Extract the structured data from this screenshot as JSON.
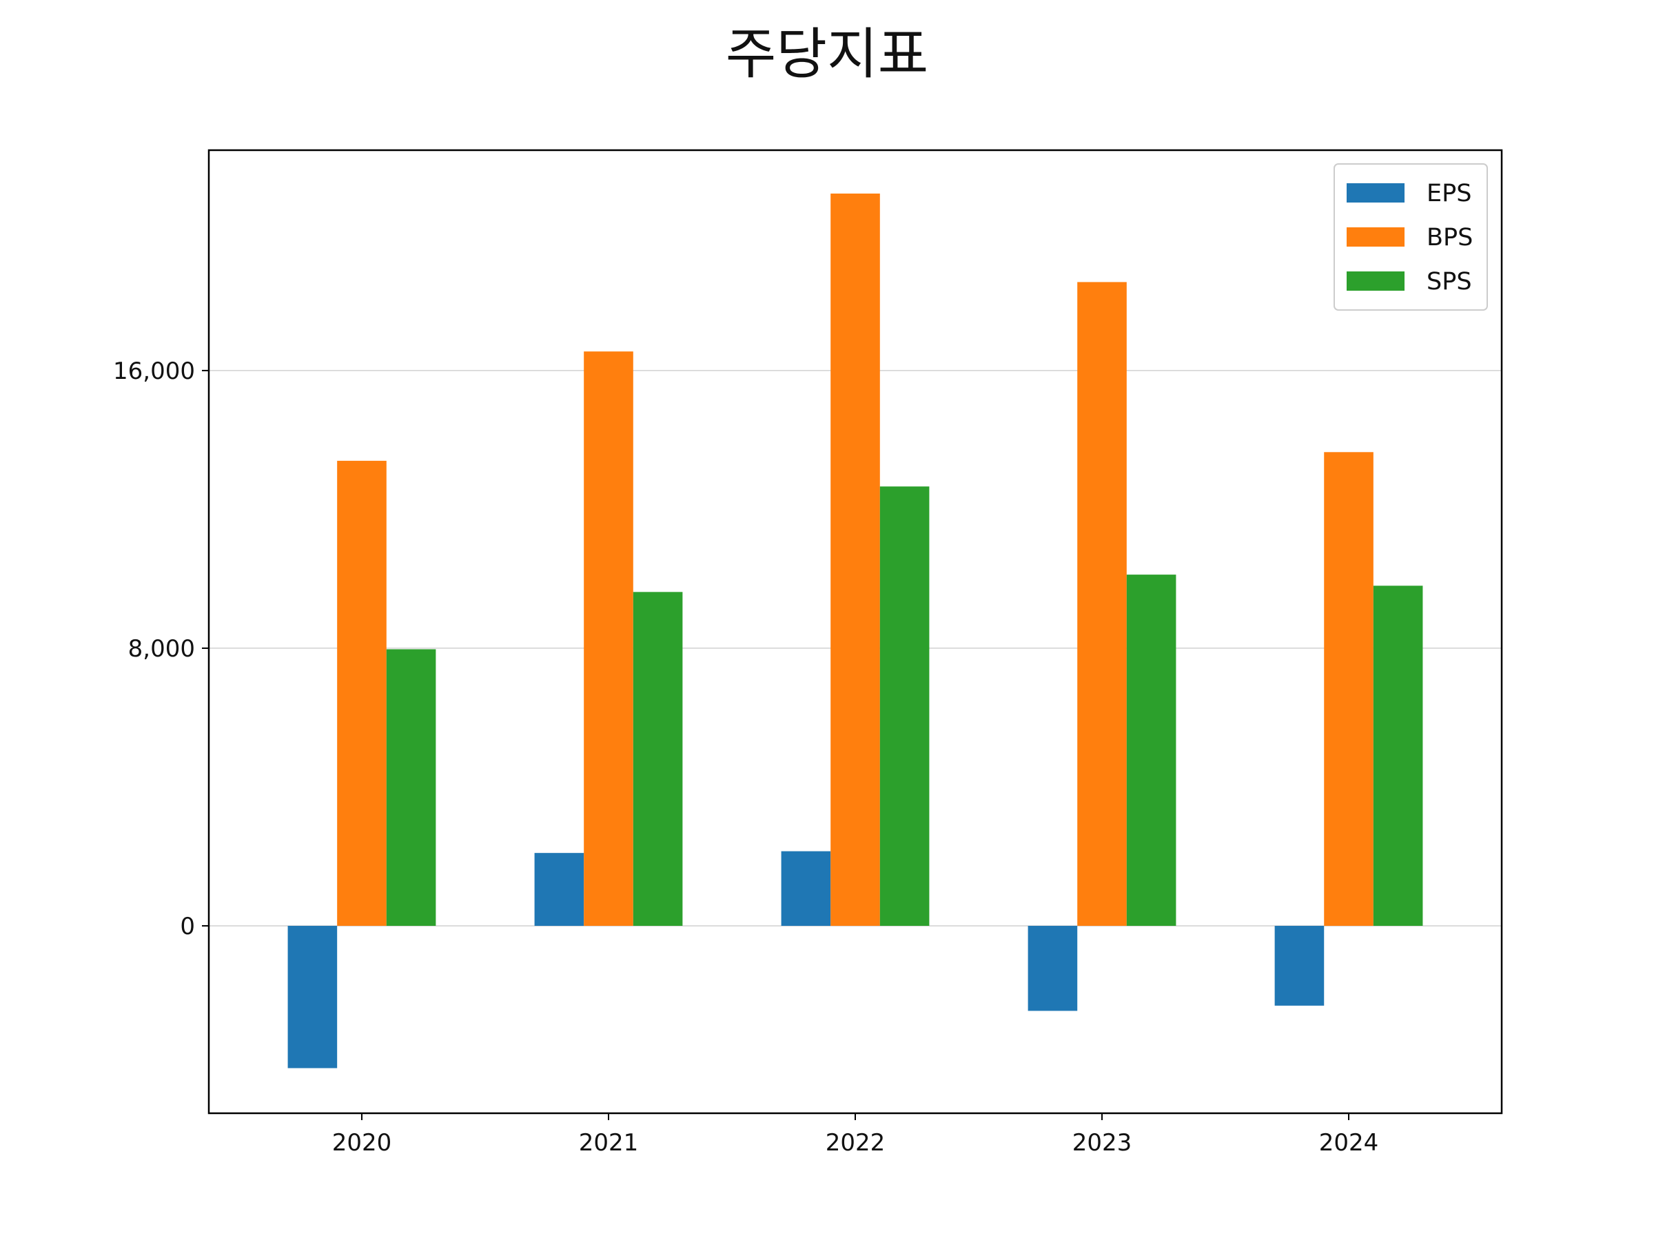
{
  "chart_data": {
    "type": "bar",
    "title": "주당지표",
    "xlabel": "",
    "ylabel": "",
    "categories": [
      "2020",
      "2021",
      "2022",
      "2023",
      "2024"
    ],
    "series": [
      {
        "name": "EPS",
        "color": "#1f77b4",
        "values": [
          -4100,
          2100,
          2150,
          -2450,
          -2300
        ]
      },
      {
        "name": "BPS",
        "color": "#ff7f0e",
        "values": [
          13400,
          16550,
          21100,
          18550,
          13650
        ]
      },
      {
        "name": "SPS",
        "color": "#2ca02c",
        "values": [
          7970,
          9620,
          12660,
          10120,
          9800
        ]
      }
    ],
    "ylim": [
      -5400,
      22350
    ],
    "yticks": [
      0,
      8000,
      16000
    ],
    "ytick_labels": [
      "0",
      "8,000",
      "16,000"
    ],
    "grid": "horizontal",
    "legend_position": "top-right"
  }
}
